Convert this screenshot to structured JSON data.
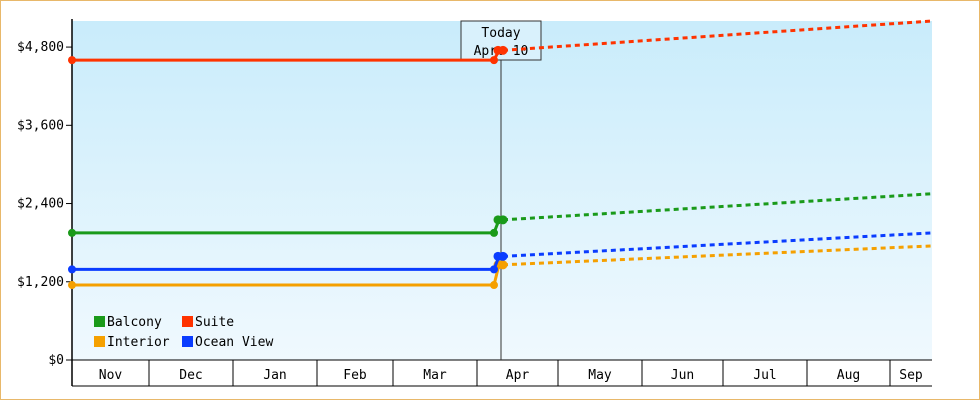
{
  "chart_data": {
    "type": "line",
    "xlabel": "",
    "ylabel": "",
    "ylim": [
      0,
      5200
    ],
    "y_ticks": [
      0,
      1200,
      2400,
      3600,
      4800
    ],
    "y_tick_labels": [
      "$0",
      "$1,200",
      "$2,400",
      "$3,600",
      "$4,800"
    ],
    "months": [
      "Nov",
      "Dec",
      "Jan",
      "Feb",
      "Mar",
      "Apr",
      "May",
      "Jun",
      "Jul",
      "Aug",
      "Sep"
    ],
    "today_marker": {
      "line1": "Today",
      "line2": "Apr. 10"
    },
    "legend_position": "bottom-left",
    "series": [
      {
        "name": "Balcony",
        "color": "#1a9a1a",
        "historical": {
          "start": 1950,
          "end": 1950,
          "jump_to": 2150
        },
        "forecast": {
          "start": 2150,
          "end": 2550
        }
      },
      {
        "name": "Suite",
        "color": "#ff3300",
        "historical": {
          "start": 4600,
          "end": 4600,
          "jump_to": 4750
        },
        "forecast": {
          "start": 4750,
          "end": 5200
        }
      },
      {
        "name": "Interior",
        "color": "#f5a000",
        "historical": {
          "start": 1150,
          "end": 1150,
          "jump_to": 1460
        },
        "forecast": {
          "start": 1460,
          "end": 1750
        }
      },
      {
        "name": "Ocean View",
        "color": "#0a3cff",
        "historical": {
          "start": 1390,
          "end": 1390,
          "jump_to": 1590
        },
        "forecast": {
          "start": 1590,
          "end": 1950
        }
      }
    ]
  }
}
